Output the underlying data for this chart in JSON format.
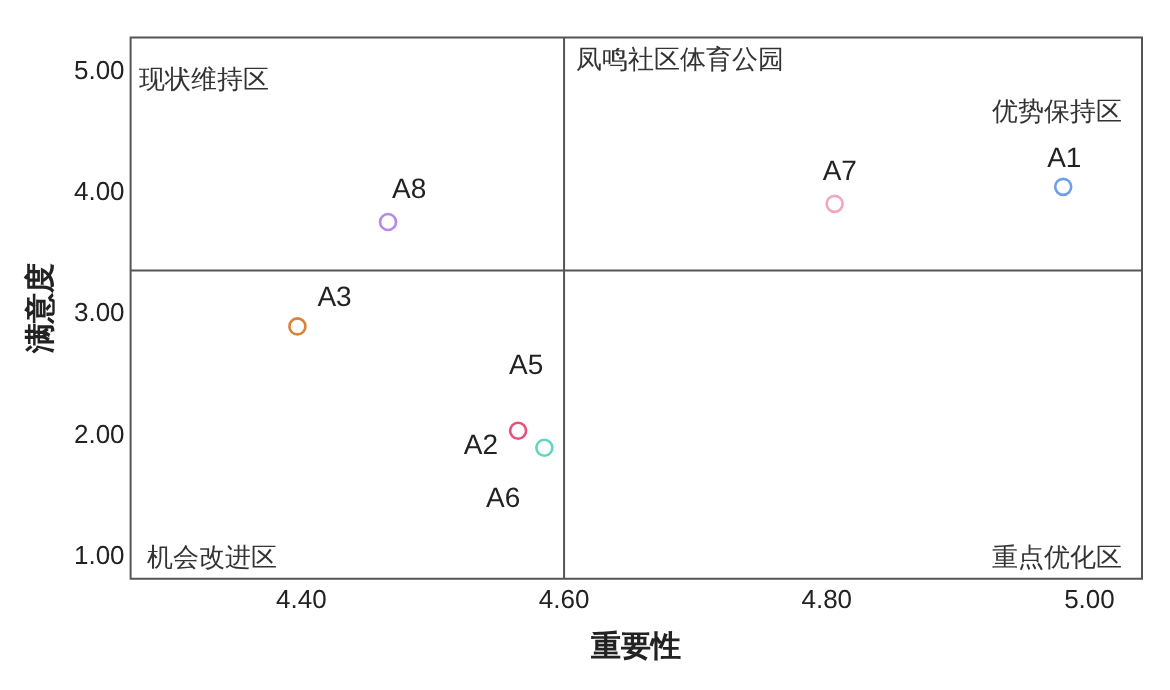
{
  "chart_data": {
    "type": "scatter",
    "title": "凤鸣社区体育公园",
    "xlabel": "重要性",
    "ylabel": "满意度",
    "xlim": [
      4.27,
      5.04
    ],
    "ylim": [
      0.82,
      5.28
    ],
    "xticks": [
      {
        "value": 4.4,
        "label": "4.40"
      },
      {
        "value": 4.6,
        "label": "4.60"
      },
      {
        "value": 4.8,
        "label": "4.80"
      },
      {
        "value": 5,
        "label": "5.00"
      }
    ],
    "yticks": [
      {
        "value": 1,
        "label": "1.00"
      },
      {
        "value": 2,
        "label": "2.00"
      },
      {
        "value": 3,
        "label": "3.00"
      },
      {
        "value": 4,
        "label": "4.00"
      },
      {
        "value": 5,
        "label": "5.00"
      }
    ],
    "grid": false,
    "legend": false,
    "marker": "circle",
    "ref_lines": [
      {
        "axis": "x",
        "value": 4.6,
        "color": "#555555"
      },
      {
        "axis": "y",
        "value": 3.36,
        "color": "#555555"
      }
    ],
    "annotations": [
      "现状维持区",
      "优势保持区",
      "机会改进区",
      "重点优化区",
      {
        "text": "A5",
        "x": 4.565,
        "y": 2.04
      }
    ],
    "series": [
      {
        "name": "A1",
        "color": "#6fa0e8",
        "x": [
          4.98
        ],
        "values": [
          4.05
        ]
      },
      {
        "name": "A2",
        "color": "#e8507a",
        "x": [
          4.565
        ],
        "values": [
          2.04
        ]
      },
      {
        "name": "A3",
        "color": "#d9823a",
        "x": [
          4.397
        ],
        "values": [
          2.9
        ]
      },
      {
        "name": "A6",
        "color": "#5fd6c0",
        "x": [
          4.585
        ],
        "values": [
          1.9
        ]
      },
      {
        "name": "A7",
        "color": "#f2a8c0",
        "x": [
          4.806
        ],
        "values": [
          3.91
        ]
      },
      {
        "name": "A8",
        "color": "#b88ae8",
        "x": [
          4.466
        ],
        "values": [
          3.76
        ]
      }
    ]
  }
}
